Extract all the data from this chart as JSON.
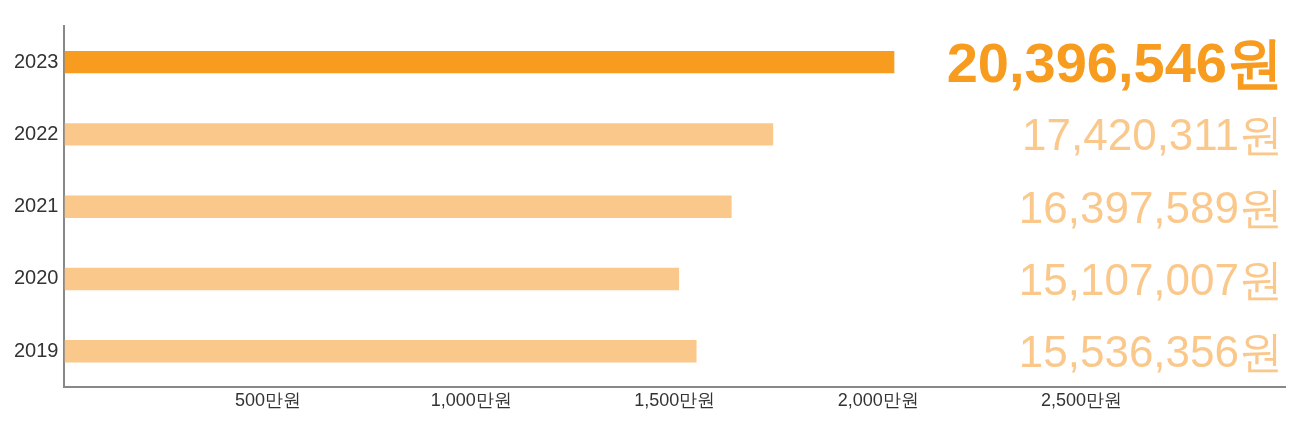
{
  "chart_data": {
    "type": "bar",
    "orientation": "horizontal",
    "categories": [
      "2023",
      "2022",
      "2021",
      "2020",
      "2019"
    ],
    "values": [
      2039.7,
      1742.0,
      1639.8,
      1510.7,
      1553.6
    ],
    "colors": [
      "#f79c1f",
      "#fbc88b",
      "#fbc88b",
      "#fbc88b",
      "#fbc88b"
    ],
    "annotations": [
      "20,396,546원",
      "17,420,311원",
      "16,397,589원",
      "15,107,007원",
      "15,536,356원"
    ],
    "xlim": [
      0,
      3000
    ],
    "xticks": [
      {
        "value": 500,
        "label": "500만원"
      },
      {
        "value": 1000,
        "label": "1,000만원"
      },
      {
        "value": 1500,
        "label": "1,500만원"
      },
      {
        "value": 2000,
        "label": "2,000만원"
      },
      {
        "value": 2500,
        "label": "2,500만원"
      }
    ],
    "grid": false,
    "legend": false
  }
}
